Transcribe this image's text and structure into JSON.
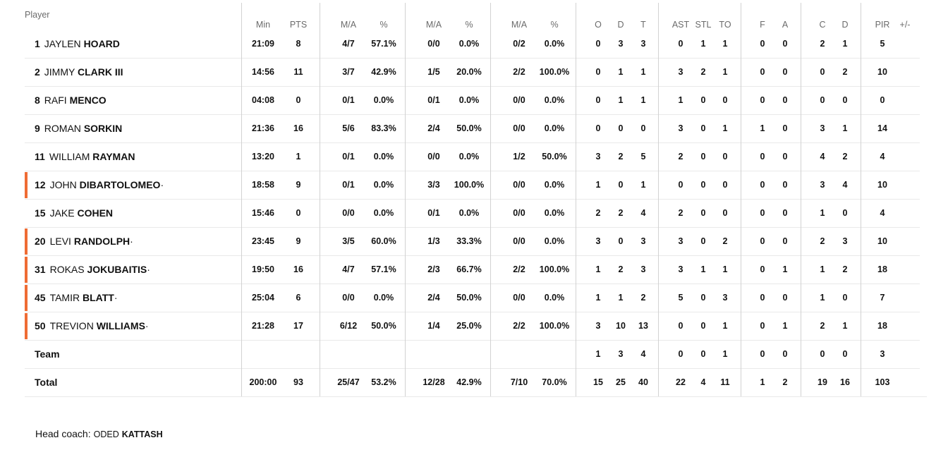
{
  "columns": {
    "player": "Player",
    "headers": [
      "Min",
      "PTS",
      "M/A",
      "%",
      "M/A",
      "%",
      "M/A",
      "%",
      "O",
      "D",
      "T",
      "AST",
      "STL",
      "TO",
      "F",
      "A",
      "C",
      "D",
      "PIR",
      "+/-"
    ]
  },
  "accent_color": "#ef6c34",
  "players": [
    {
      "number": "1",
      "first": "JAYLEN",
      "last": "HOARD",
      "starter": false,
      "stats": [
        "21:09",
        "8",
        "4/7",
        "57.1%",
        "0/0",
        "0.0%",
        "0/2",
        "0.0%",
        "0",
        "3",
        "3",
        "0",
        "1",
        "1",
        "0",
        "0",
        "2",
        "1",
        "5",
        ""
      ]
    },
    {
      "number": "2",
      "first": "JIMMY",
      "last": "CLARK III",
      "starter": false,
      "stats": [
        "14:56",
        "11",
        "3/7",
        "42.9%",
        "1/5",
        "20.0%",
        "2/2",
        "100.0%",
        "0",
        "1",
        "1",
        "3",
        "2",
        "1",
        "0",
        "0",
        "0",
        "2",
        "10",
        ""
      ]
    },
    {
      "number": "8",
      "first": "RAFI",
      "last": "MENCO",
      "starter": false,
      "stats": [
        "04:08",
        "0",
        "0/1",
        "0.0%",
        "0/1",
        "0.0%",
        "0/0",
        "0.0%",
        "0",
        "1",
        "1",
        "1",
        "0",
        "0",
        "0",
        "0",
        "0",
        "0",
        "0",
        ""
      ]
    },
    {
      "number": "9",
      "first": "ROMAN",
      "last": "SORKIN",
      "starter": false,
      "stats": [
        "21:36",
        "16",
        "5/6",
        "83.3%",
        "2/4",
        "50.0%",
        "0/0",
        "0.0%",
        "0",
        "0",
        "0",
        "3",
        "0",
        "1",
        "1",
        "0",
        "3",
        "1",
        "14",
        ""
      ]
    },
    {
      "number": "11",
      "first": "WILLIAM",
      "last": "RAYMAN",
      "starter": false,
      "stats": [
        "13:20",
        "1",
        "0/1",
        "0.0%",
        "0/0",
        "0.0%",
        "1/2",
        "50.0%",
        "3",
        "2",
        "5",
        "2",
        "0",
        "0",
        "0",
        "0",
        "4",
        "2",
        "4",
        ""
      ]
    },
    {
      "number": "12",
      "first": "JOHN",
      "last": "DIBARTOLOMEO",
      "starter": true,
      "stats": [
        "18:58",
        "9",
        "0/1",
        "0.0%",
        "3/3",
        "100.0%",
        "0/0",
        "0.0%",
        "1",
        "0",
        "1",
        "0",
        "0",
        "0",
        "0",
        "0",
        "3",
        "4",
        "10",
        ""
      ]
    },
    {
      "number": "15",
      "first": "JAKE",
      "last": "COHEN",
      "starter": false,
      "stats": [
        "15:46",
        "0",
        "0/0",
        "0.0%",
        "0/1",
        "0.0%",
        "0/0",
        "0.0%",
        "2",
        "2",
        "4",
        "2",
        "0",
        "0",
        "0",
        "0",
        "1",
        "0",
        "4",
        ""
      ]
    },
    {
      "number": "20",
      "first": "LEVI",
      "last": "RANDOLPH",
      "starter": true,
      "stats": [
        "23:45",
        "9",
        "3/5",
        "60.0%",
        "1/3",
        "33.3%",
        "0/0",
        "0.0%",
        "3",
        "0",
        "3",
        "3",
        "0",
        "2",
        "0",
        "0",
        "2",
        "3",
        "10",
        ""
      ]
    },
    {
      "number": "31",
      "first": "ROKAS",
      "last": "JOKUBAITIS",
      "starter": true,
      "stats": [
        "19:50",
        "16",
        "4/7",
        "57.1%",
        "2/3",
        "66.7%",
        "2/2",
        "100.0%",
        "1",
        "2",
        "3",
        "3",
        "1",
        "1",
        "0",
        "1",
        "1",
        "2",
        "18",
        ""
      ]
    },
    {
      "number": "45",
      "first": "TAMIR",
      "last": "BLATT",
      "starter": true,
      "stats": [
        "25:04",
        "6",
        "0/0",
        "0.0%",
        "2/4",
        "50.0%",
        "0/0",
        "0.0%",
        "1",
        "1",
        "2",
        "5",
        "0",
        "3",
        "0",
        "0",
        "1",
        "0",
        "7",
        ""
      ]
    },
    {
      "number": "50",
      "first": "TREVION",
      "last": "WILLIAMS",
      "starter": true,
      "stats": [
        "21:28",
        "17",
        "6/12",
        "50.0%",
        "1/4",
        "25.0%",
        "2/2",
        "100.0%",
        "3",
        "10",
        "13",
        "0",
        "0",
        "1",
        "0",
        "1",
        "2",
        "1",
        "18",
        ""
      ]
    }
  ],
  "team_row": {
    "label": "Team",
    "stats": [
      "",
      "",
      "",
      "",
      "",
      "",
      "",
      "",
      "1",
      "3",
      "4",
      "0",
      "0",
      "1",
      "0",
      "0",
      "0",
      "0",
      "3",
      ""
    ]
  },
  "total_row": {
    "label": "Total",
    "stats": [
      "200:00",
      "93",
      "25/47",
      "53.2%",
      "12/28",
      "42.9%",
      "7/10",
      "70.0%",
      "15",
      "25",
      "40",
      "22",
      "4",
      "11",
      "1",
      "2",
      "19",
      "16",
      "103",
      ""
    ]
  },
  "coach": {
    "label": "Head coach:",
    "first": "ODED",
    "last": "KATTASH"
  }
}
